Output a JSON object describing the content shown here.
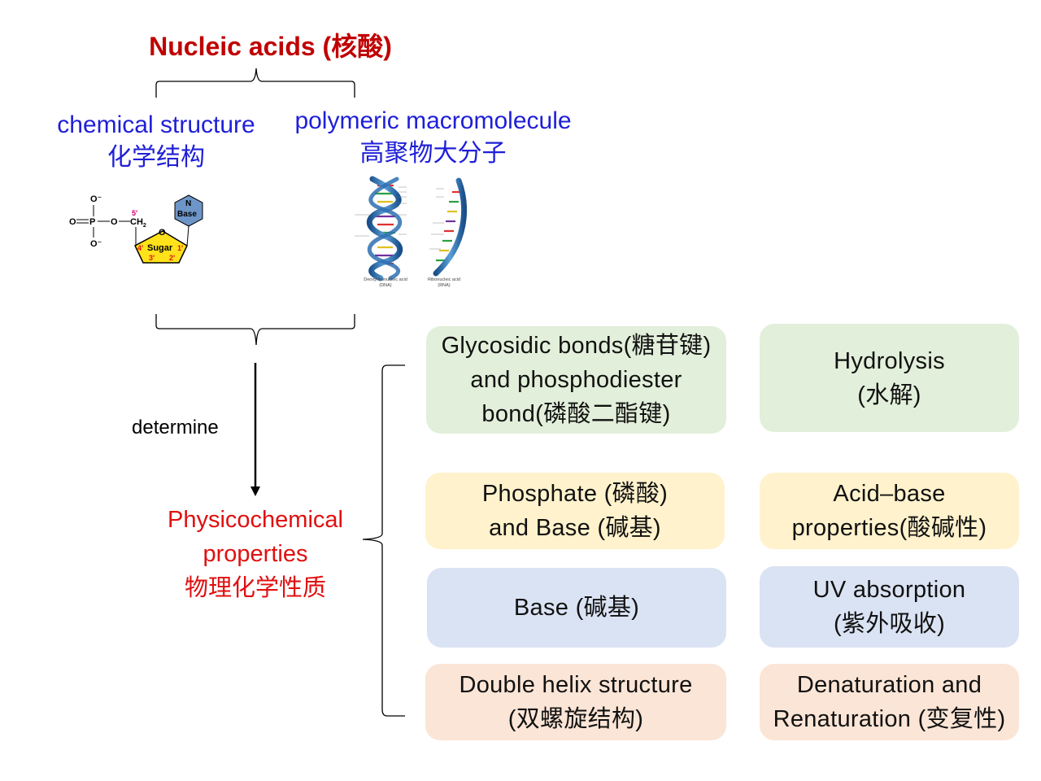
{
  "title": "Nucleic acids (核酸)",
  "branches": {
    "chemical_structure": {
      "en": "chemical structure",
      "zh": "化学结构"
    },
    "polymeric": {
      "en": "polymeric macromolecule",
      "zh": "高聚物大分子"
    }
  },
  "nucleotide_figure": {
    "phosphate_o_top": "O⁻",
    "phosphate_o_left": "O",
    "phosphate_p": "P",
    "phosphate_o_bottom": "O⁻",
    "bridge_o": "O",
    "ch2": "CH",
    "ch2_sub": "2",
    "five_prime": "5'",
    "ring_o": "O",
    "sugar": "Sugar",
    "four_prime": "4'",
    "one_prime": "1'",
    "three_prime": "3'",
    "two_prime": "2'",
    "base_n": "N",
    "base": "Base"
  },
  "helix_figure": {
    "dna_caption_1": "Deoxyribonucleic acid",
    "dna_caption_2": "(DNA)",
    "rna_caption_1": "Ribonucleic acid",
    "rna_caption_2": "(RNA)"
  },
  "arrow_label": "determine",
  "physicochemical": {
    "line1": "Physicochemical",
    "line2": "properties",
    "line3": "物理化学性质"
  },
  "boxes": {
    "glycosidic": {
      "lines": [
        "Glycosidic bonds(糖苷键)",
        "and phosphodiester",
        "bond(磷酸二酯键)"
      ]
    },
    "hydrolysis": {
      "lines": [
        "Hydrolysis",
        "(水解)"
      ]
    },
    "phosphate": {
      "lines": [
        "Phosphate (磷酸)",
        "and Base (碱基)"
      ]
    },
    "acidbase": {
      "lines": [
        "Acid–base",
        "properties(酸碱性)"
      ]
    },
    "base": {
      "lines": [
        "Base (碱基)"
      ]
    },
    "uv": {
      "lines": [
        "UV absorption",
        "(紫外吸收)"
      ]
    },
    "doublehelix": {
      "lines": [
        "Double helix structure",
        "(双螺旋结构)"
      ]
    },
    "denaturation": {
      "lines": [
        "Denaturation and",
        "Renaturation (变复性)"
      ]
    }
  },
  "colors": {
    "title_red": "#c00000",
    "label_blue": "#1f1fd8",
    "label_red": "#e01010",
    "green_box": "#e2efda",
    "yellow_box": "#fff2cc",
    "blue_box": "#dae3f3",
    "peach_box": "#fbe5d6"
  }
}
